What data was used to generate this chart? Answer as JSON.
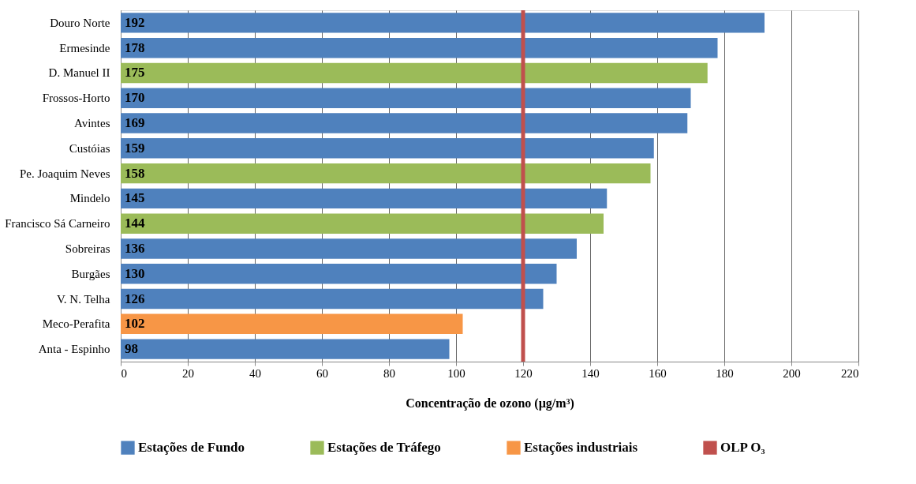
{
  "chart_data": {
    "type": "bar",
    "orientation": "horizontal",
    "xlabel": "Concentração de ozono (µg/m³)",
    "categories": [
      "Douro Norte",
      "Ermesinde",
      "D. Manuel II",
      "Frossos-Horto",
      "Avintes",
      "Custóias",
      "Pe. Joaquim Neves",
      "Mindelo",
      "Francisco Sá Carneiro",
      "Sobreiras",
      "Burgães",
      "V. N. Telha",
      "Meco-Perafita",
      "Anta - Espinho"
    ],
    "series": [
      {
        "name": "Estações de Fundo",
        "color": "#4f81bd",
        "values": [
          192,
          178,
          null,
          170,
          169,
          159,
          null,
          145,
          null,
          136,
          130,
          126,
          null,
          98
        ]
      },
      {
        "name": "Estações de Tráfego",
        "color": "#9bbb59",
        "values": [
          null,
          null,
          175,
          null,
          null,
          null,
          158,
          null,
          144,
          null,
          null,
          null,
          null,
          null
        ]
      },
      {
        "name": "Estações industriais",
        "color": "#f79646",
        "values": [
          null,
          null,
          null,
          null,
          null,
          null,
          null,
          null,
          null,
          null,
          null,
          null,
          102,
          null
        ]
      }
    ],
    "xlim": [
      0,
      220
    ],
    "xticks": [
      0,
      20,
      40,
      60,
      80,
      100,
      120,
      140,
      160,
      180,
      200,
      220
    ],
    "ref_lines": [
      {
        "axis": "x",
        "value": 120,
        "label": "OLP O₃",
        "color": "#c0504d"
      }
    ],
    "data_labels": true,
    "grid": "x",
    "legend": "bottom"
  }
}
